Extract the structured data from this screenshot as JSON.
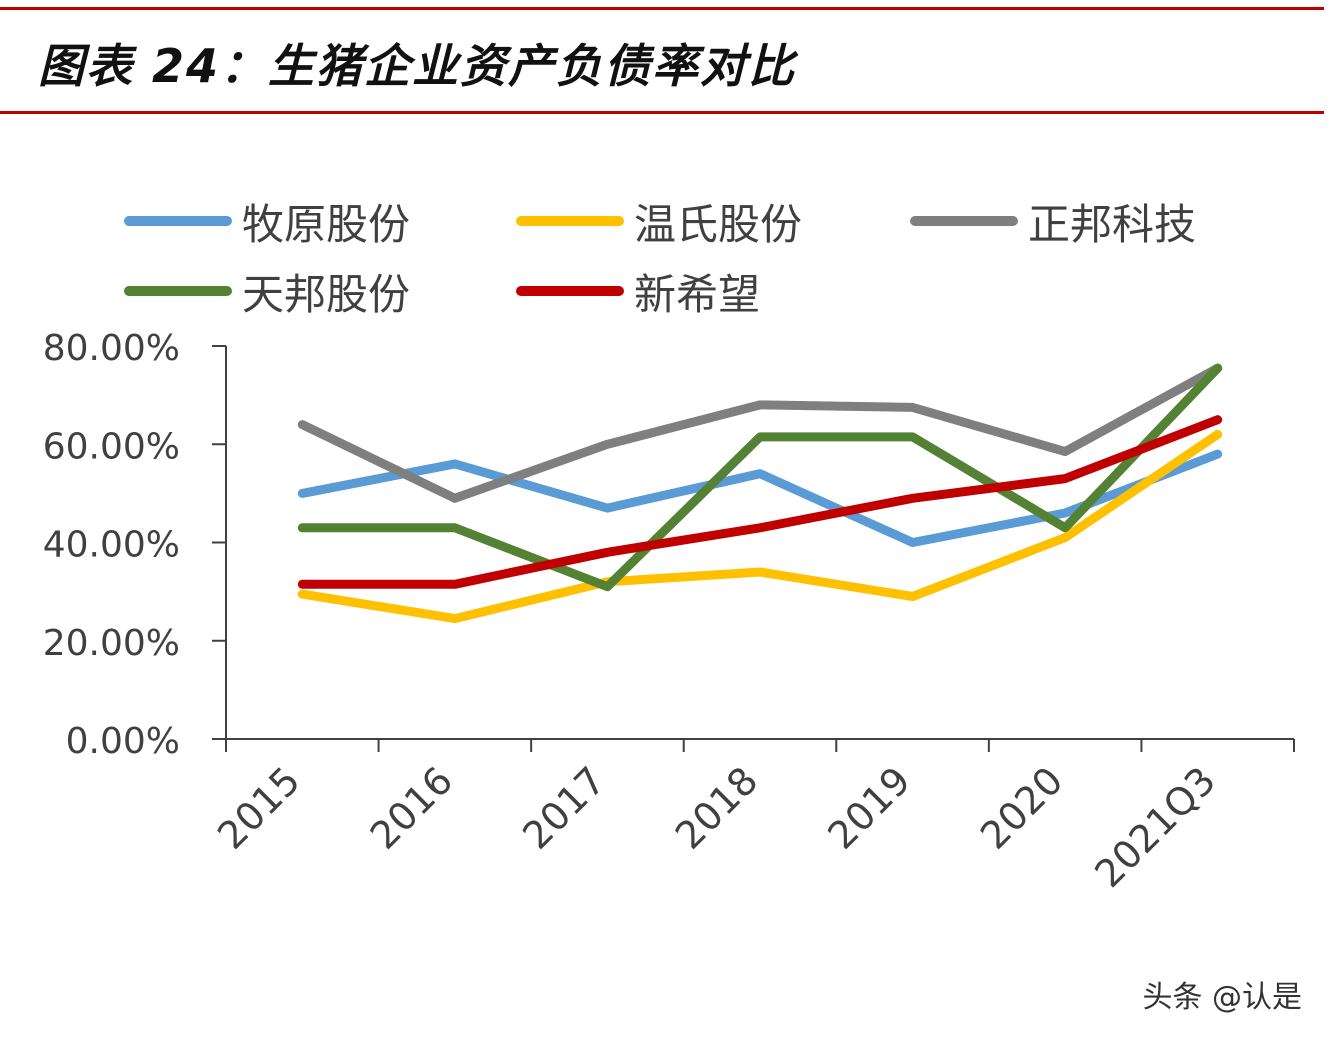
{
  "header": {
    "title": "图表 24：生猪企业资产负债率对比",
    "rule_color": "#c00000"
  },
  "watermark": "头条 @认是",
  "chart_data": {
    "type": "line",
    "title": "",
    "xlabel": "",
    "ylabel": "",
    "categories": [
      "2015",
      "2016",
      "2017",
      "2018",
      "2019",
      "2020",
      "2021Q3"
    ],
    "ylim": [
      0,
      80
    ],
    "yticks": [
      "0.00%",
      "20.00%",
      "40.00%",
      "60.00%",
      "80.00%"
    ],
    "grid": false,
    "legend_position": "top",
    "series": [
      {
        "name": "牧原股份",
        "color": "#5b9bd5",
        "values": [
          50.0,
          56.0,
          47.0,
          54.0,
          40.0,
          46.0,
          58.0
        ]
      },
      {
        "name": "温氏股份",
        "color": "#ffc000",
        "values": [
          29.5,
          24.5,
          32.0,
          34.0,
          29.0,
          41.0,
          62.0
        ]
      },
      {
        "name": "正邦科技",
        "color": "#7f7f7f",
        "values": [
          64.0,
          49.0,
          60.0,
          68.0,
          67.5,
          58.5,
          75.5
        ]
      },
      {
        "name": "天邦股份",
        "color": "#548235",
        "values": [
          43.0,
          43.0,
          31.0,
          61.5,
          61.5,
          43.0,
          75.5
        ]
      },
      {
        "name": "新希望",
        "color": "#c00000",
        "values": [
          31.5,
          31.5,
          38.0,
          43.0,
          49.0,
          53.0,
          65.0
        ]
      }
    ]
  }
}
